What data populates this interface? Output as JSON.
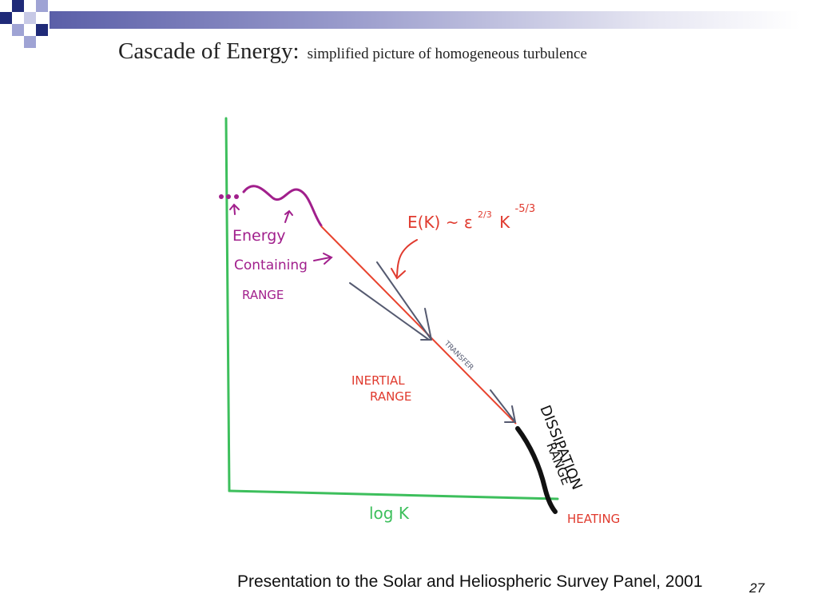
{
  "slide": {
    "title_main": "Cascade of Energy:",
    "title_sub": "simplified picture of homogeneous turbulence",
    "footer": "Presentation to the Solar and Heliospheric Survey Panel, 2001",
    "page_number": "27"
  },
  "diagram": {
    "energy_label_1": "Energy",
    "energy_label_2": "Containing",
    "energy_label_3": "RANGE",
    "formula_main": "E(K) ~ ε",
    "formula_exp1": "2/3",
    "formula_k": "K",
    "formula_exp2": "-5/3",
    "transfer_label": "TRANSFER",
    "inertial_label_1": "INERTIAL",
    "inertial_label_2": "RANGE",
    "dissipation_label_1": "DISSIPATION",
    "dissipation_label_2": "RANGE",
    "heating_label": "HEATING",
    "x_axis_label": "log K"
  },
  "colors": {
    "axis": "#3dbf5c",
    "energy_magenta": "#a11f8c",
    "spectrum_red": "#e8432e",
    "annotation_red": "#e03a2e",
    "arrow_gray": "#555a70",
    "dissipation_black": "#111111",
    "accent_navy": "#1f2a78"
  }
}
